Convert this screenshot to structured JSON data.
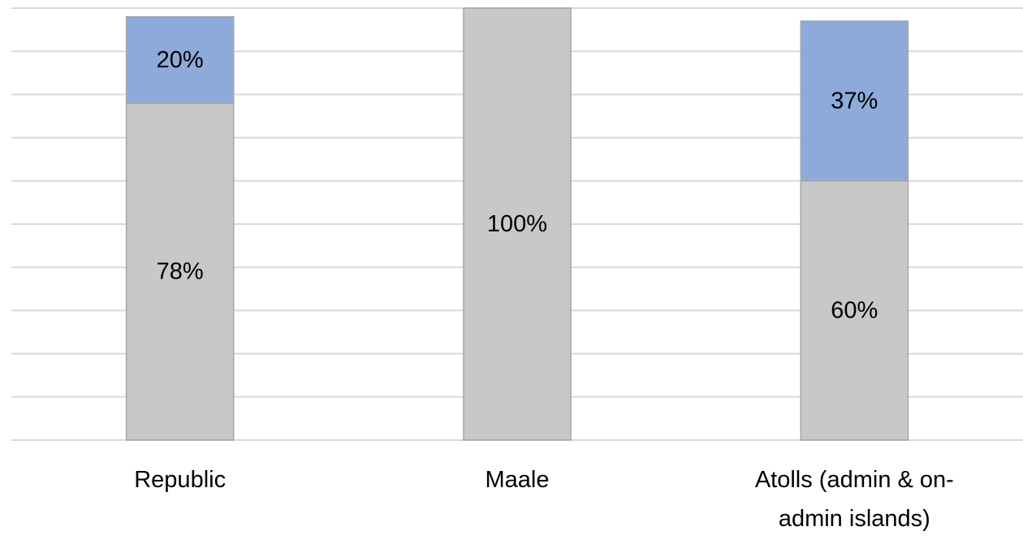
{
  "chart_data": {
    "type": "bar",
    "stacked": true,
    "categories": [
      "Republic",
      "Maale",
      "Atolls (admin & on-admin islands)"
    ],
    "category_label_lines": [
      [
        "Republic"
      ],
      [
        "Maale"
      ],
      [
        "Atolls (admin & on-",
        "admin islands)"
      ]
    ],
    "series": [
      {
        "values": [
          78,
          100,
          60
        ],
        "data_labels": [
          "78%",
          "100%",
          "60%"
        ],
        "color": "#c8c8c8"
      },
      {
        "values": [
          20,
          0,
          37
        ],
        "data_labels": [
          "20%",
          "",
          "37%"
        ],
        "color": "#8eaadb"
      }
    ],
    "ylim": [
      0,
      100
    ],
    "grid": true,
    "legend": "none"
  }
}
